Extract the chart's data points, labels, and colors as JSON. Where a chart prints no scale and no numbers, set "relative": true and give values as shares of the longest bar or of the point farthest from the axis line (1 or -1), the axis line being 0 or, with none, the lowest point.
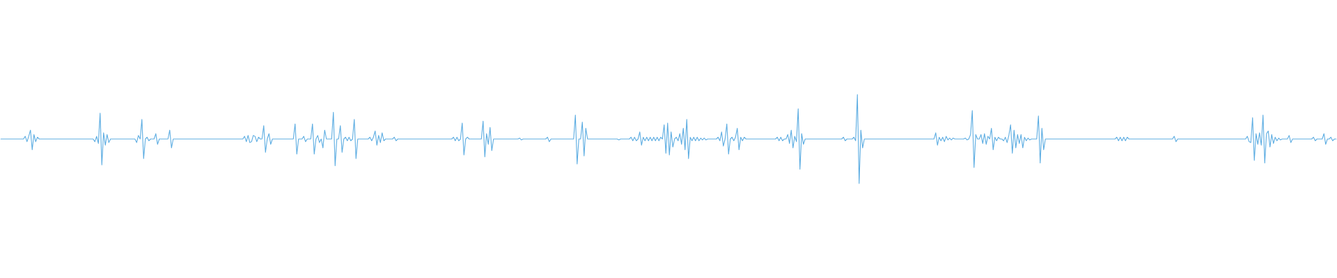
{
  "chart_data": {
    "type": "line",
    "relative": true,
    "categories": [
      null,
      null,
      null,
      null,
      null,
      null,
      null,
      null,
      null,
      null,
      null,
      null,
      null,
      null,
      null,
      null,
      null,
      null,
      null,
      null,
      null,
      null,
      null,
      null,
      null,
      null,
      null,
      null,
      null,
      null,
      null,
      null,
      null,
      null,
      null,
      null,
      null,
      null,
      null,
      null,
      null,
      null,
      null,
      null,
      null,
      null,
      null,
      null,
      null,
      null,
      null,
      null,
      null,
      null,
      null,
      null,
      null,
      null,
      null,
      null,
      null,
      null,
      null,
      null,
      null,
      null,
      null,
      null,
      null,
      null,
      null,
      null,
      null,
      null,
      null,
      null,
      null,
      null,
      null,
      null,
      null,
      null,
      null,
      null,
      null,
      null,
      null,
      null,
      null,
      null,
      null,
      null,
      null,
      null,
      null,
      null,
      null,
      null,
      null,
      null,
      null,
      null,
      null,
      null,
      null,
      null,
      null,
      null,
      null,
      null,
      null,
      null,
      null,
      null,
      null,
      null,
      null,
      null,
      null,
      null,
      null,
      null,
      null,
      null,
      null,
      null,
      null,
      null,
      null,
      null,
      null,
      null,
      null,
      null,
      null,
      null,
      null,
      null,
      null,
      null,
      null,
      null,
      null,
      null,
      null,
      null,
      null,
      null,
      null,
      null,
      null,
      null,
      null,
      null,
      null,
      null,
      null,
      null,
      null,
      null,
      null,
      null,
      null,
      null,
      null,
      null,
      null,
      null,
      null,
      null,
      null,
      null,
      null,
      null,
      null,
      null,
      null,
      null,
      null,
      null,
      null,
      null,
      null,
      null,
      null,
      null,
      null,
      null,
      null,
      null,
      null,
      null,
      null,
      null,
      null,
      null,
      null,
      null,
      null,
      null,
      null,
      null,
      null,
      null,
      null,
      null,
      null,
      null,
      null,
      null,
      null,
      null,
      null,
      null,
      null,
      null,
      null,
      null,
      null,
      null,
      null,
      null,
      null,
      null,
      null,
      null,
      null,
      null,
      null,
      null,
      null,
      null,
      null,
      null,
      null,
      null,
      null,
      null,
      null,
      null,
      null,
      null,
      null,
      null,
      null,
      null,
      null,
      null,
      null,
      null,
      null,
      null,
      null,
      null,
      null,
      null,
      null,
      null,
      null,
      null,
      null,
      null,
      null,
      null,
      null,
      null,
      null,
      null,
      null,
      null,
      null,
      null,
      null,
      null,
      null,
      null,
      null,
      null,
      null,
      null,
      null,
      null,
      null,
      null,
      null,
      null,
      null,
      null,
      null,
      null,
      null,
      null,
      null,
      null,
      null,
      null,
      null,
      null,
      null,
      null,
      null,
      null,
      null,
      null,
      null,
      null,
      null,
      null,
      null,
      null,
      null,
      null,
      null,
      null,
      null,
      null,
      null,
      null,
      null,
      null,
      null,
      null,
      null,
      null,
      null,
      null,
      null,
      null,
      null,
      null,
      null,
      null,
      null,
      null,
      null,
      null,
      null,
      null,
      null,
      null,
      null,
      null,
      null,
      null,
      null,
      null,
      null,
      null,
      null,
      null,
      null,
      null,
      null,
      null,
      null,
      null,
      null,
      null,
      null,
      null,
      null,
      null,
      null,
      null,
      null,
      null,
      null,
      null,
      null,
      null,
      null,
      null,
      null,
      null,
      null,
      null,
      null,
      null,
      null,
      null,
      null,
      null,
      null,
      null,
      null,
      null,
      null,
      null,
      null,
      null,
      null,
      null,
      null,
      null,
      null,
      null,
      null,
      null,
      null,
      null,
      null,
      null,
      null,
      null,
      null,
      null,
      null,
      null,
      null,
      null,
      null,
      null,
      null,
      null,
      null,
      null,
      null,
      null,
      null,
      null,
      null,
      null,
      null,
      null,
      null,
      null,
      null,
      null,
      null,
      null,
      null,
      null,
      null,
      null,
      null,
      null,
      null,
      null,
      null,
      null,
      null,
      null,
      null,
      null,
      null,
      null,
      null,
      null,
      null,
      null,
      null,
      null,
      null,
      null,
      null,
      null,
      null,
      null,
      null,
      null,
      null,
      null,
      null,
      null,
      null,
      null,
      null,
      null,
      null,
      null,
      null,
      null,
      null,
      null,
      null,
      null,
      null,
      null,
      null,
      null,
      null,
      null,
      null,
      null,
      null,
      null,
      null,
      null,
      null,
      null,
      null,
      null,
      null,
      null,
      null,
      null,
      null,
      null,
      null,
      null,
      null,
      null,
      null,
      null,
      null,
      null,
      null,
      null,
      null,
      null,
      null,
      null,
      null,
      null,
      null,
      null,
      null,
      null,
      null,
      null,
      null,
      null,
      null,
      null,
      null,
      null,
      null,
      null,
      null,
      null,
      null,
      null,
      null,
      null,
      null,
      null,
      null,
      null,
      null,
      null,
      null,
      null,
      null,
      null,
      null,
      null,
      null,
      null,
      null,
      null,
      null,
      null,
      null,
      null,
      null,
      null,
      null,
      null,
      null,
      null,
      null,
      null,
      null,
      null,
      null,
      null,
      null,
      null,
      null,
      null,
      null,
      null,
      null,
      null,
      null,
      null,
      null,
      null,
      null,
      null,
      null,
      null,
      null,
      null,
      null,
      null,
      null,
      null,
      null,
      null,
      null,
      null,
      null,
      null,
      null,
      null,
      null,
      null,
      null,
      null,
      null,
      null,
      null,
      null,
      null,
      null,
      null,
      null,
      null,
      null,
      null,
      null,
      null,
      null,
      null,
      null,
      null,
      null,
      null,
      null,
      null,
      null,
      null,
      null,
      null,
      null,
      null,
      null,
      null,
      null,
      null,
      null,
      null,
      null,
      null,
      null,
      null,
      null,
      null,
      null,
      null,
      null,
      null,
      null,
      null,
      null,
      null,
      null,
      null,
      null,
      null,
      null,
      null,
      null,
      null,
      null,
      null,
      null,
      null,
      null,
      null,
      null,
      null,
      null,
      null,
      null,
      null,
      null,
      null,
      null,
      null,
      null,
      null,
      null,
      null,
      null,
      null,
      null,
      null,
      null,
      null,
      null,
      null,
      null,
      null,
      null,
      null,
      null,
      null,
      null,
      null,
      null,
      null,
      null,
      null,
      null,
      null,
      null,
      null,
      null,
      null,
      null,
      null,
      null,
      null,
      null,
      null,
      null,
      null,
      null,
      null,
      null,
      null,
      null,
      null,
      null,
      null,
      null,
      null,
      null,
      null,
      null,
      null,
      null,
      null,
      null,
      null,
      null,
      null,
      null,
      null,
      null,
      null,
      null,
      null,
      null,
      null,
      null,
      null,
      null,
      null,
      null,
      null,
      null,
      null,
      null,
      null,
      null,
      null,
      null,
      null,
      null,
      null,
      null,
      null,
      null,
      null,
      null,
      null,
      null,
      null,
      null,
      null,
      null,
      null,
      null,
      null,
      null
    ],
    "series": [
      {
        "color": "#5dade2",
        "values": [
          0.5,
          0.5,
          0.5,
          0.5,
          0.5,
          0.5,
          0.5,
          0.5,
          0.5,
          0.5,
          0.5,
          0.5,
          0.5,
          0.5,
          0.53,
          0.47,
          0.53,
          0.6,
          0.38,
          0.55,
          0.47,
          0.52,
          0.5,
          0.5,
          0.5,
          0.5,
          0.5,
          0.5,
          0.5,
          0.5,
          0.5,
          0.5,
          0.5,
          0.5,
          0.5,
          0.5,
          0.5,
          0.5,
          0.5,
          0.5,
          0.5,
          0.5,
          0.5,
          0.5,
          0.5,
          0.5,
          0.5,
          0.5,
          0.5,
          0.5,
          0.5,
          0.5,
          0.5,
          0.5,
          0.47,
          0.53,
          0.45,
          0.79,
          0.21,
          0.57,
          0.43,
          0.55,
          0.46,
          0.5,
          0.5,
          0.5,
          0.5,
          0.5,
          0.5,
          0.5,
          0.5,
          0.5,
          0.5,
          0.5,
          0.5,
          0.5,
          0.5,
          0.5,
          0.46,
          0.54,
          0.5,
          0.72,
          0.28,
          0.5,
          0.52,
          0.48,
          0.5,
          0.5,
          0.5,
          0.56,
          0.44,
          0.5,
          0.5,
          0.5,
          0.5,
          0.5,
          0.5,
          0.6,
          0.4,
          0.5,
          0.5,
          0.5,
          0.5,
          0.5,
          0.5,
          0.5,
          0.5,
          0.5,
          0.5,
          0.5,
          0.5,
          0.5,
          0.5,
          0.5,
          0.5,
          0.5,
          0.5,
          0.5,
          0.5,
          0.5,
          0.5,
          0.5,
          0.5,
          0.5,
          0.5,
          0.5,
          0.5,
          0.5,
          0.5,
          0.5,
          0.5,
          0.5,
          0.5,
          0.5,
          0.5,
          0.5,
          0.5,
          0.5,
          0.5,
          0.5,
          0.53,
          0.47,
          0.54,
          0.46,
          0.47,
          0.54,
          0.53,
          0.47,
          0.52,
          0.5,
          0.5,
          0.65,
          0.35,
          0.5,
          0.56,
          0.44,
          0.5,
          0.5,
          0.5,
          0.5,
          0.5,
          0.5,
          0.5,
          0.5,
          0.5,
          0.5,
          0.5,
          0.5,
          0.5,
          0.67,
          0.33,
          0.5,
          0.5,
          0.5,
          0.53,
          0.47,
          0.5,
          0.5,
          0.5,
          0.67,
          0.33,
          0.5,
          0.54,
          0.46,
          0.5,
          0.4,
          0.6,
          0.5,
          0.5,
          0.5,
          0.5,
          0.8,
          0.2,
          0.5,
          0.5,
          0.65,
          0.35,
          0.5,
          0.52,
          0.48,
          0.52,
          0.48,
          0.5,
          0.72,
          0.28,
          0.5,
          0.5,
          0.5,
          0.5,
          0.5,
          0.5,
          0.5,
          0.52,
          0.48,
          0.52,
          0.59,
          0.43,
          0.54,
          0.46,
          0.57,
          0.48,
          0.5,
          0.5,
          0.5,
          0.5,
          0.5,
          0.52,
          0.48,
          0.5,
          0.5,
          0.5,
          0.5,
          0.5,
          0.5,
          0.5,
          0.5,
          0.5,
          0.5,
          0.5,
          0.5,
          0.5,
          0.5,
          0.5,
          0.5,
          0.5,
          0.5,
          0.5,
          0.5,
          0.5,
          0.5,
          0.5,
          0.5,
          0.5,
          0.5,
          0.5,
          0.5,
          0.5,
          0.5,
          0.5,
          0.5,
          0.52,
          0.48,
          0.52,
          0.48,
          0.5,
          0.68,
          0.32,
          0.5,
          0.52,
          0.5,
          0.5,
          0.5,
          0.5,
          0.5,
          0.5,
          0.5,
          0.5,
          0.7,
          0.3,
          0.56,
          0.44,
          0.63,
          0.37,
          0.5,
          0.5,
          0.5,
          0.5,
          0.5,
          0.5,
          0.5,
          0.5,
          0.5,
          0.5,
          0.5,
          0.5,
          0.5,
          0.5,
          0.5,
          0.51,
          0.49,
          0.5,
          0.5,
          0.5,
          0.5,
          0.5,
          0.5,
          0.5,
          0.5,
          0.5,
          0.5,
          0.5,
          0.5,
          0.5,
          0.5,
          0.52,
          0.47,
          0.5,
          0.5,
          0.5,
          0.5,
          0.5,
          0.5,
          0.5,
          0.5,
          0.5,
          0.5,
          0.5,
          0.5,
          0.5,
          0.5,
          0.77,
          0.22,
          0.5,
          0.5,
          0.69,
          0.31,
          0.62,
          0.5,
          0.5,
          0.5,
          0.5,
          0.5,
          0.5,
          0.5,
          0.5,
          0.5,
          0.5,
          0.5,
          0.5,
          0.5,
          0.5,
          0.5,
          0.5,
          0.5,
          0.5,
          0.49,
          0.5,
          0.5,
          0.5,
          0.5,
          0.5,
          0.5,
          0.52,
          0.48,
          0.52,
          0.48,
          0.5,
          0.58,
          0.43,
          0.52,
          0.48,
          0.52,
          0.48,
          0.52,
          0.48,
          0.52,
          0.48,
          0.52,
          0.48,
          0.52,
          0.5,
          0.66,
          0.34,
          0.68,
          0.32,
          0.58,
          0.41,
          0.5,
          0.52,
          0.48,
          0.56,
          0.44,
          0.62,
          0.38,
          0.72,
          0.28,
          0.52,
          0.48,
          0.52,
          0.48,
          0.52,
          0.48,
          0.51,
          0.49,
          0.51,
          0.49,
          0.5,
          0.5,
          0.5,
          0.5,
          0.5,
          0.5,
          0.52,
          0.48,
          0.58,
          0.42,
          0.5,
          0.67,
          0.33,
          0.5,
          0.52,
          0.48,
          0.52,
          0.62,
          0.38,
          0.52,
          0.48,
          0.52,
          0.5,
          0.5,
          0.5,
          0.5,
          0.5,
          0.5,
          0.5,
          0.5,
          0.5,
          0.5,
          0.5,
          0.5,
          0.5,
          0.5,
          0.5,
          0.5,
          0.5,
          0.5,
          0.52,
          0.48,
          0.52,
          0.48,
          0.5,
          0.5,
          0.55,
          0.45,
          0.6,
          0.4,
          0.53,
          0.47,
          0.84,
          0.16,
          0.56,
          0.44,
          0.5,
          0.5,
          0.5,
          0.5,
          0.5,
          0.5,
          0.5,
          0.5,
          0.5,
          0.5,
          0.5,
          0.5,
          0.5,
          0.5,
          0.5,
          0.5,
          0.5,
          0.5,
          0.5,
          0.5,
          0.5,
          0.5,
          0.52,
          0.48,
          0.5,
          0.5,
          0.5,
          0.5,
          0.52,
          0.48,
          1,
          0,
          0.6,
          0.4,
          0.5,
          0.5,
          0.5,
          0.5,
          0.5,
          0.5,
          0.5,
          0.5,
          0.5,
          0.5,
          0.5,
          0.5,
          0.5,
          0.5,
          0.5,
          0.5,
          0.5,
          0.5,
          0.5,
          0.5,
          0.5,
          0.5,
          0.5,
          0.5,
          0.5,
          0.5,
          0.5,
          0.5,
          0.5,
          0.5,
          0.5,
          0.5,
          0.5,
          0.5,
          0.5,
          0.5,
          0.5,
          0.5,
          0.5,
          0.5,
          0.5,
          0.57,
          0.43,
          0.52,
          0.48,
          0.52,
          0.47,
          0.53,
          0.49,
          0.51,
          0.49,
          0.51,
          0.5,
          0.5,
          0.5,
          0.5,
          0.5,
          0.5,
          0.51,
          0.49,
          0.5,
          0.55,
          0.82,
          0.18,
          0.55,
          0.5,
          0.5,
          0.55,
          0.45,
          0.56,
          0.44,
          0.53,
          0.5,
          0.62,
          0.38,
          0.52,
          0.48,
          0.52,
          0.5,
          0.5,
          0.48,
          0.52,
          0.46,
          0.54,
          0.66,
          0.34,
          0.6,
          0.4,
          0.55,
          0.45,
          0.55,
          0.4,
          0.52,
          0.48,
          0.51,
          0.49,
          0.5,
          0.5,
          0.5,
          0.5,
          0.76,
          0.23,
          0.62,
          0.38,
          0.5,
          0.5,
          0.5,
          0.5,
          0.5,
          0.5,
          0.5,
          0.5,
          0.5,
          0.5,
          0.5,
          0.5,
          0.5,
          0.5,
          0.5,
          0.5,
          0.5,
          0.5,
          0.5,
          0.5,
          0.5,
          0.5,
          0.5,
          0.5,
          0.5,
          0.5,
          0.5,
          0.5,
          0.5,
          0.5,
          0.5,
          0.5,
          0.5,
          0.5,
          0.5,
          0.5,
          0.5,
          0.5,
          0.5,
          0.5,
          0.5,
          0.52,
          0.48,
          0.52,
          0.48,
          0.52,
          0.48,
          0.52,
          0.5,
          0.5,
          0.5,
          0.5,
          0.5,
          0.5,
          0.5,
          0.5,
          0.5,
          0.5,
          0.5,
          0.5,
          0.5,
          0.5,
          0.5,
          0.5,
          0.5,
          0.5,
          0.5,
          0.5,
          0.5,
          0.5,
          0.5,
          0.5,
          0.5,
          0.5,
          0.53,
          0.47,
          0.5,
          0.5,
          0.5,
          0.5,
          0.5,
          0.5,
          0.5,
          0.5,
          0.5,
          0.5,
          0.5,
          0.5,
          0.5,
          0.5,
          0.5,
          0.5,
          0.5,
          0.5,
          0.5,
          0.5,
          0.5,
          0.5,
          0.5,
          0.5,
          0.5,
          0.5,
          0.5,
          0.5,
          0.5,
          0.5,
          0.5,
          0.5,
          0.5,
          0.5,
          0.5,
          0.5,
          0.5,
          0.5,
          0.5,
          0.5,
          0.53,
          0.47,
          0.46,
          0.74,
          0.26,
          0.56,
          0.44,
          0.57,
          0.43,
          0.77,
          0.23,
          0.56,
          0.59,
          0.41,
          0.55,
          0.45,
          0.52,
          0.48,
          0.51,
          0.49,
          0.5,
          0.5,
          0.5,
          0.5,
          0.54,
          0.46,
          0.5,
          0.5,
          0.5,
          0.5,
          0.5,
          0.5,
          0.5,
          0.5,
          0.5,
          0.5,
          0.5,
          0.5,
          0.52,
          0.48,
          0.5,
          0.5,
          0.5,
          0.5,
          0.56,
          0.44,
          0.5,
          0.5,
          0.52,
          0.48,
          0.5,
          0.5
        ]
      }
    ]
  }
}
